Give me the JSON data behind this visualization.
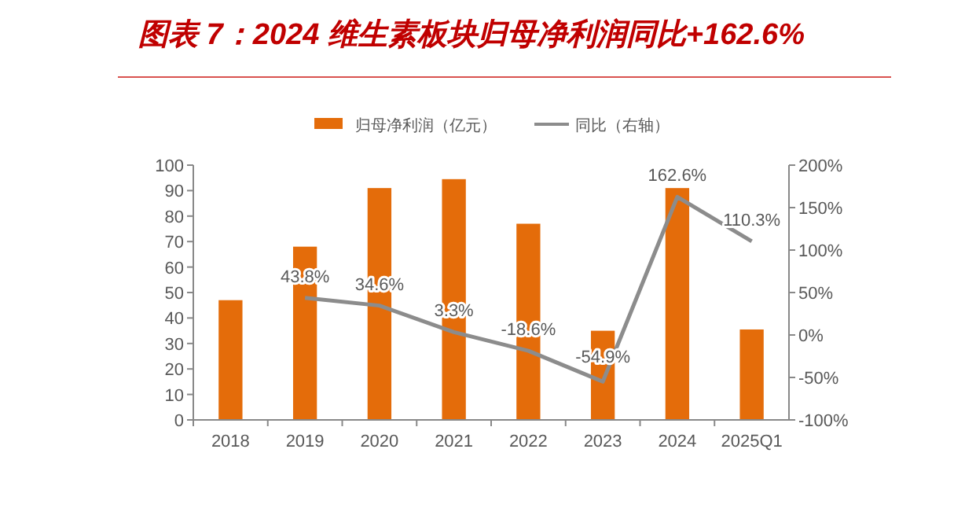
{
  "chart_data": {
    "type": "bar",
    "title": "图表 7：2024 维生素板块归母净利润同比+162.6%",
    "categories": [
      "2018",
      "2019",
      "2020",
      "2021",
      "2022",
      "2023",
      "2024",
      "2025Q1"
    ],
    "series": [
      {
        "name": "归母净利润（亿元）",
        "color": "#e46c0a",
        "values": [
          47,
          68,
          91,
          94.5,
          77,
          35,
          91,
          35.5
        ]
      },
      {
        "name": "同比（右轴）",
        "type": "line",
        "axis": "y2",
        "color": "#8c8c8c",
        "values": [
          null,
          43.8,
          34.6,
          3.3,
          -18.6,
          -54.9,
          162.6,
          110.3
        ],
        "value_labels": [
          null,
          "43.8%",
          "34.6%",
          "3.3%",
          "-18.6%",
          "-54.9%",
          "162.6%",
          "110.3%"
        ]
      }
    ],
    "ylim": [
      0,
      100
    ],
    "yticks": [
      0,
      10,
      20,
      30,
      40,
      50,
      60,
      70,
      80,
      90,
      100
    ],
    "y2lim": [
      -100,
      200
    ],
    "y2ticks": [
      {
        "value": -100,
        "label": "-100%"
      },
      {
        "value": -50,
        "label": "-50%"
      },
      {
        "value": 0,
        "label": "0%"
      },
      {
        "value": 50,
        "label": "50%"
      },
      {
        "value": 100,
        "label": "100%"
      },
      {
        "value": 150,
        "label": "150%"
      },
      {
        "value": 200,
        "label": "200%"
      }
    ],
    "legend": "top",
    "grid": false
  }
}
